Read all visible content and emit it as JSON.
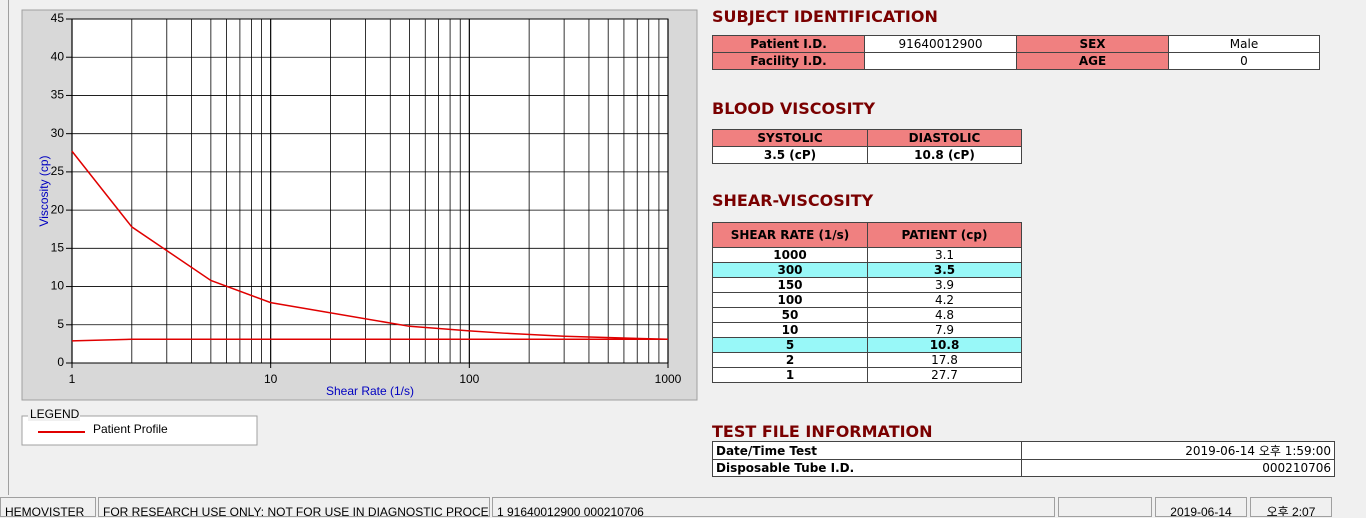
{
  "chart_data": {
    "type": "line",
    "x_label": "Shear Rate (1/s)",
    "y_label": "Viscosity (cp)",
    "legend_title": "LEGEND",
    "x": [
      1,
      2,
      5,
      10,
      50,
      100,
      150,
      300,
      1000
    ],
    "series": [
      {
        "name": "Patient Profile",
        "color": "#e00000",
        "values": [
          27.7,
          17.8,
          10.8,
          7.9,
          4.8,
          4.2,
          3.9,
          3.5,
          3.1
        ]
      },
      {
        "color": "#e00000",
        "values": [
          2.9,
          3.1,
          3.1,
          3.1,
          3.1,
          3.1,
          3.1,
          3.1,
          3.1
        ]
      }
    ],
    "xlim": [
      1,
      1000
    ],
    "ylim": [
      0,
      45
    ],
    "xticks": [
      1,
      10,
      100,
      1000
    ],
    "yticks": [
      0,
      5,
      10,
      15,
      20,
      25,
      30,
      35,
      40,
      45
    ],
    "xscale": "log",
    "grid": true,
    "minor_grid": true
  },
  "subject": {
    "title": "SUBJECT IDENTIFICATION",
    "patient_id_label": "Patient I.D.",
    "patient_id": "91640012900",
    "sex_label": "SEX",
    "sex": "Male",
    "facility_label": "Facility I.D.",
    "age_label": "AGE",
    "age": "0"
  },
  "blood": {
    "title": "BLOOD VISCOSITY",
    "headers": [
      "SYSTOLIC",
      "DIASTOLIC"
    ],
    "values": [
      "3.5 (cP)",
      "10.8 (cP)"
    ]
  },
  "shear": {
    "title": "SHEAR-VISCOSITY",
    "headers": [
      "SHEAR RATE (1/s)",
      "PATIENT (cp)"
    ],
    "rows": [
      [
        "1000",
        "3.1"
      ],
      [
        "300",
        "3.5"
      ],
      [
        "150",
        "3.9"
      ],
      [
        "100",
        "4.2"
      ],
      [
        "50",
        "4.8"
      ],
      [
        "10",
        "7.9"
      ],
      [
        "5",
        "10.8"
      ],
      [
        "2",
        "17.8"
      ],
      [
        "1",
        "27.7"
      ]
    ]
  },
  "test_file": {
    "title": "TEST FILE INFORMATION",
    "rows": [
      [
        "Date/Time Test",
        "2019-06-14   오후 1:59:00"
      ],
      [
        "Disposable Tube I.D.",
        "000210706"
      ]
    ]
  },
  "status_bar": [
    "HEMOVISTER",
    "FOR RESEARCH USE ONLY: NOT FOR USE IN DIAGNOSTIC PROCEDURES",
    "1  91640012900  000210706",
    "2019-06-14",
    "오후 2:07"
  ]
}
